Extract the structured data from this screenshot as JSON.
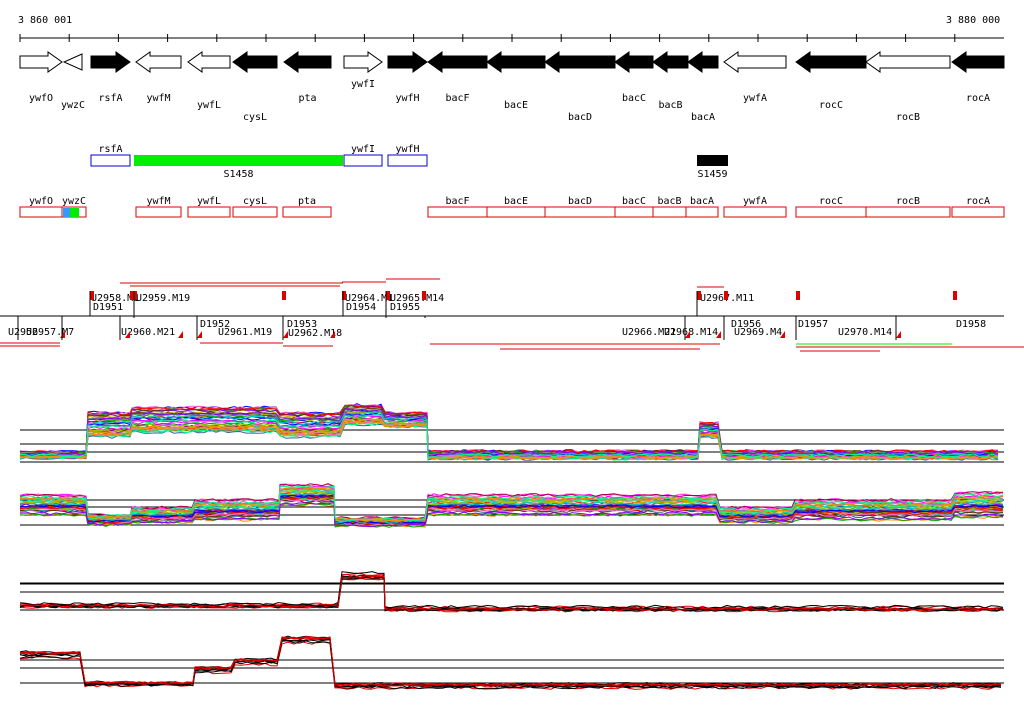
{
  "ruler": {
    "start_label": "3 860 001",
    "end_label": "3 880 000"
  },
  "genes": [
    {
      "name": "ywfO",
      "strand": "+",
      "filled": false,
      "label_row": 0
    },
    {
      "name": "ywzC",
      "strand": "-",
      "filled": false,
      "label_row": 1
    },
    {
      "name": "rsfA",
      "strand": "+",
      "filled": true,
      "label_row": 0
    },
    {
      "name": "ywfM",
      "strand": "-",
      "filled": false,
      "label_row": 0
    },
    {
      "name": "ywfL",
      "strand": "-",
      "filled": false,
      "label_row": 1
    },
    {
      "name": "cysL",
      "strand": "-",
      "filled": true,
      "label_row": 2
    },
    {
      "name": "pta",
      "strand": "-",
      "filled": true,
      "label_row": 0
    },
    {
      "name": "ywfI",
      "strand": "+",
      "filled": false,
      "label_row": -1
    },
    {
      "name": "ywfH",
      "strand": "+",
      "filled": true,
      "label_row": 0
    },
    {
      "name": "bacF",
      "strand": "-",
      "filled": true,
      "label_row": 0
    },
    {
      "name": "bacE",
      "strand": "-",
      "filled": true,
      "label_row": 1
    },
    {
      "name": "bacD",
      "strand": "-",
      "filled": true,
      "label_row": 2
    },
    {
      "name": "bacC",
      "strand": "-",
      "filled": true,
      "label_row": 0
    },
    {
      "name": "bacB",
      "strand": "-",
      "filled": true,
      "label_row": 1
    },
    {
      "name": "bacA",
      "strand": "-",
      "filled": true,
      "label_row": 2
    },
    {
      "name": "ywfA",
      "strand": "-",
      "filled": false,
      "label_row": 0
    },
    {
      "name": "rocC",
      "strand": "-",
      "filled": true,
      "label_row": 1
    },
    {
      "name": "rocB",
      "strand": "-",
      "filled": false,
      "label_row": 2
    },
    {
      "name": "rocA",
      "strand": "-",
      "filled": true,
      "label_row": 0
    }
  ],
  "regulatory_track": [
    {
      "label": "rsfA",
      "style": "blue-box"
    },
    {
      "label": "S1458",
      "style": "green-bar"
    },
    {
      "label": "ywfI",
      "style": "blue-box"
    },
    {
      "label": "ywfH",
      "style": "blue-box"
    },
    {
      "label": "S1459",
      "style": "black-bar"
    }
  ],
  "transcript_track": [
    "ywfO",
    "ywzC",
    "ywfM",
    "ywfL",
    "cysL",
    "pta",
    "bacF",
    "bacE",
    "bacD",
    "bacC",
    "bacB",
    "bacA",
    "ywfA",
    "rocC",
    "rocB",
    "rocA"
  ],
  "upper_annotations": [
    "U2958.M1",
    "U2959.M19",
    "D1951",
    "U2964.M1",
    "U2965.M14",
    "D1954",
    "D1955",
    "U2967.M11"
  ],
  "lower_annotations": [
    "U2956",
    "U2957.M7",
    "U2960.M21",
    "D1952",
    "U2961.M19",
    "D1953",
    "U2962.M18",
    "U2966.M21",
    "U2968.M14",
    "D1956",
    "U2969.M4",
    "D1957",
    "U2970.M14",
    "D1958"
  ],
  "colors": {
    "blue": "#0000cc",
    "green": "#00ee00",
    "red": "#dd0000",
    "black": "#000000"
  }
}
